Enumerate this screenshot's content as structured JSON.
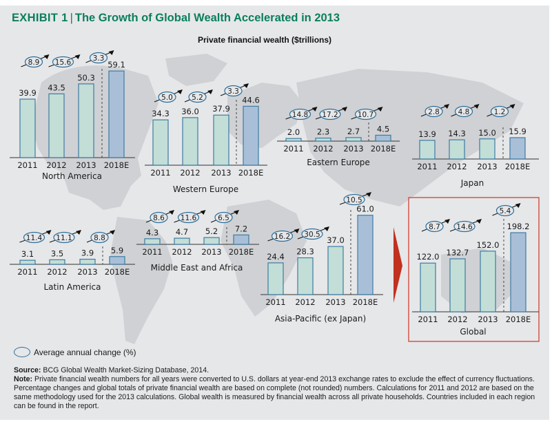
{
  "header": {
    "exhibit": "EXHIBIT 1",
    "separator": "|",
    "title": "The Growth of Global Wealth Accelerated in 2013",
    "subtitle": "Private financial wealth ($trillions)"
  },
  "legend": {
    "label": "Average annual change (%)"
  },
  "footer": {
    "source_label": "Source:",
    "source_text": "BCG Global Wealth Market-Sizing Database, 2014.",
    "note_label": "Note:",
    "note_text": "Private financial wealth numbers for all years were converted to U.S. dollars at year-end 2013 exchange rates to exclude the effect of currency fluctuations. Percentage changes and global totals of private financial wealth are based on complete (not rounded) numbers. Calculations for 2011 and 2012 are based on the same methodology used for the 2013 calculations. Global wealth is measured by financial wealth across all private households. Countries included in each region can be found in the report."
  },
  "colors": {
    "title": "#0a7f5c",
    "actual_bar": "#c3ded6",
    "forecast_bar": "#a9bfd8",
    "bar_border": "#3c7ba3",
    "highlight_border": "#d2574b",
    "arrow_marker": "#c0311f"
  },
  "chart_data": [
    {
      "type": "bar",
      "title": "North America",
      "categories": [
        "2011",
        "2012",
        "2013",
        "2018E"
      ],
      "values": [
        39.9,
        43.5,
        50.3,
        59.1
      ],
      "changes": [
        "8.9",
        "15.6",
        "3.3"
      ],
      "value_labels": [
        "39.9",
        "43.5",
        "50.3",
        "59.1"
      ],
      "ylabel": "Private financial wealth ($trillions)"
    },
    {
      "type": "bar",
      "title": "Western Europe",
      "categories": [
        "2011",
        "2012",
        "2013",
        "2018E"
      ],
      "values": [
        34.3,
        36.0,
        37.9,
        44.6
      ],
      "changes": [
        "5.0",
        "5.2",
        "3.3"
      ],
      "value_labels": [
        "34.3",
        "36.0",
        "37.9",
        "44.6"
      ]
    },
    {
      "type": "bar",
      "title": "Eastern Europe",
      "categories": [
        "2011",
        "2012",
        "2013",
        "2018E"
      ],
      "values": [
        2.0,
        2.3,
        2.7,
        4.5
      ],
      "changes": [
        "14.8",
        "17.2",
        "10.7"
      ],
      "value_labels": [
        "2.0",
        "2.3",
        "2.7",
        "4.5"
      ]
    },
    {
      "type": "bar",
      "title": "Japan",
      "categories": [
        "2011",
        "2012",
        "2013",
        "2018E"
      ],
      "values": [
        13.9,
        14.3,
        15.0,
        15.9
      ],
      "changes": [
        "2.8",
        "4.8",
        "1.2"
      ],
      "value_labels": [
        "13.9",
        "14.3",
        "15.0",
        "15.9"
      ]
    },
    {
      "type": "bar",
      "title": "Latin America",
      "categories": [
        "2011",
        "2012",
        "2013",
        "2018E"
      ],
      "values": [
        3.1,
        3.5,
        3.9,
        5.9
      ],
      "changes": [
        "11.4",
        "11.1",
        "8.8"
      ],
      "value_labels": [
        "3.1",
        "3.5",
        "3.9",
        "5.9"
      ]
    },
    {
      "type": "bar",
      "title": "Middle East and Africa",
      "categories": [
        "2011",
        "2012",
        "2013",
        "2018E"
      ],
      "values": [
        4.3,
        4.7,
        5.2,
        7.2
      ],
      "changes": [
        "8.6",
        "11.6",
        "6.5"
      ],
      "value_labels": [
        "4.3",
        "4.7",
        "5.2",
        "7.2"
      ]
    },
    {
      "type": "bar",
      "title": "Asia-Pacific (ex Japan)",
      "categories": [
        "2011",
        "2012",
        "2013",
        "2018E"
      ],
      "values": [
        24.4,
        28.3,
        37.0,
        61.0
      ],
      "changes": [
        "16.2",
        "30.5",
        "10.5"
      ],
      "value_labels": [
        "24.4",
        "28.3",
        "37.0",
        "61.0"
      ]
    },
    {
      "type": "bar",
      "title": "Global",
      "categories": [
        "2011",
        "2012",
        "2013",
        "2018E"
      ],
      "values": [
        122.0,
        132.7,
        152.0,
        198.2
      ],
      "changes": [
        "8.7",
        "14.6",
        "5.4"
      ],
      "value_labels": [
        "122.0",
        "132.7",
        "152.0",
        "198.2"
      ]
    }
  ]
}
